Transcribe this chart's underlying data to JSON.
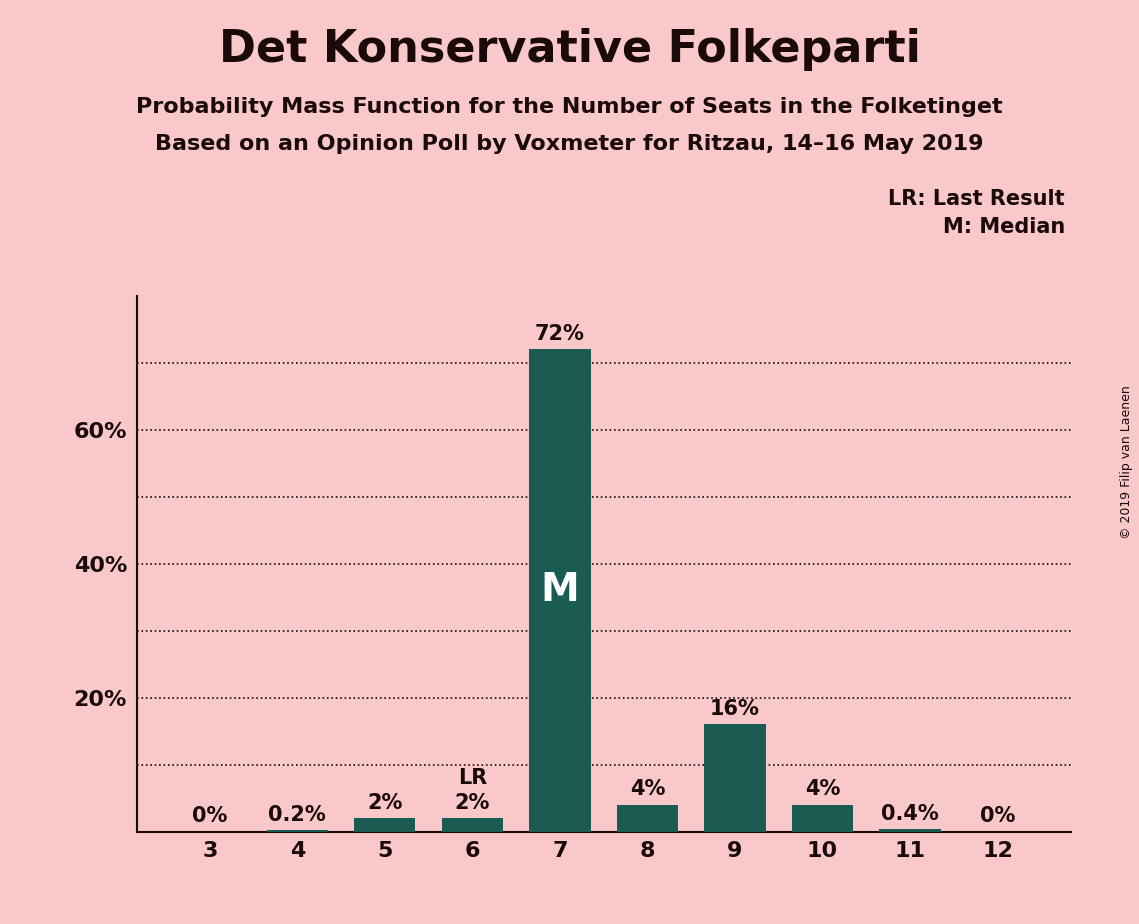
{
  "title": "Det Konservative Folkeparti",
  "subtitle1": "Probability Mass Function for the Number of Seats in the Folketinget",
  "subtitle2": "Based on an Opinion Poll by Voxmeter for Ritzau, 14–16 May 2019",
  "copyright": "© 2019 Filip van Laenen",
  "categories": [
    3,
    4,
    5,
    6,
    7,
    8,
    9,
    10,
    11,
    12
  ],
  "values": [
    0.0,
    0.2,
    2.0,
    2.0,
    72.0,
    4.0,
    16.0,
    4.0,
    0.4,
    0.0
  ],
  "bar_color": "#1a5c52",
  "background_color": "#f9c8cb",
  "bar_labels": [
    "0%",
    "0.2%",
    "2%",
    "2%",
    "72%",
    "4%",
    "16%",
    "4%",
    "0.4%",
    "0%"
  ],
  "median_seat": 7,
  "last_result_seat": 6,
  "legend_lr": "LR: Last Result",
  "legend_m": "M: Median",
  "ytick_positions": [
    20,
    40,
    60
  ],
  "ytick_labels": [
    "20%",
    "40%",
    "60%"
  ],
  "gridline_positions": [
    10,
    20,
    30,
    40,
    50,
    60,
    70
  ],
  "ylim": [
    0,
    80
  ],
  "title_fontsize": 32,
  "subtitle_fontsize": 16,
  "label_fontsize": 15,
  "tick_fontsize": 16,
  "bar_label_fontsize": 15,
  "m_label_fontsize": 28,
  "lr_label_fontsize": 15,
  "legend_fontsize": 15,
  "copyright_fontsize": 9,
  "text_color": "#1a0a0a"
}
